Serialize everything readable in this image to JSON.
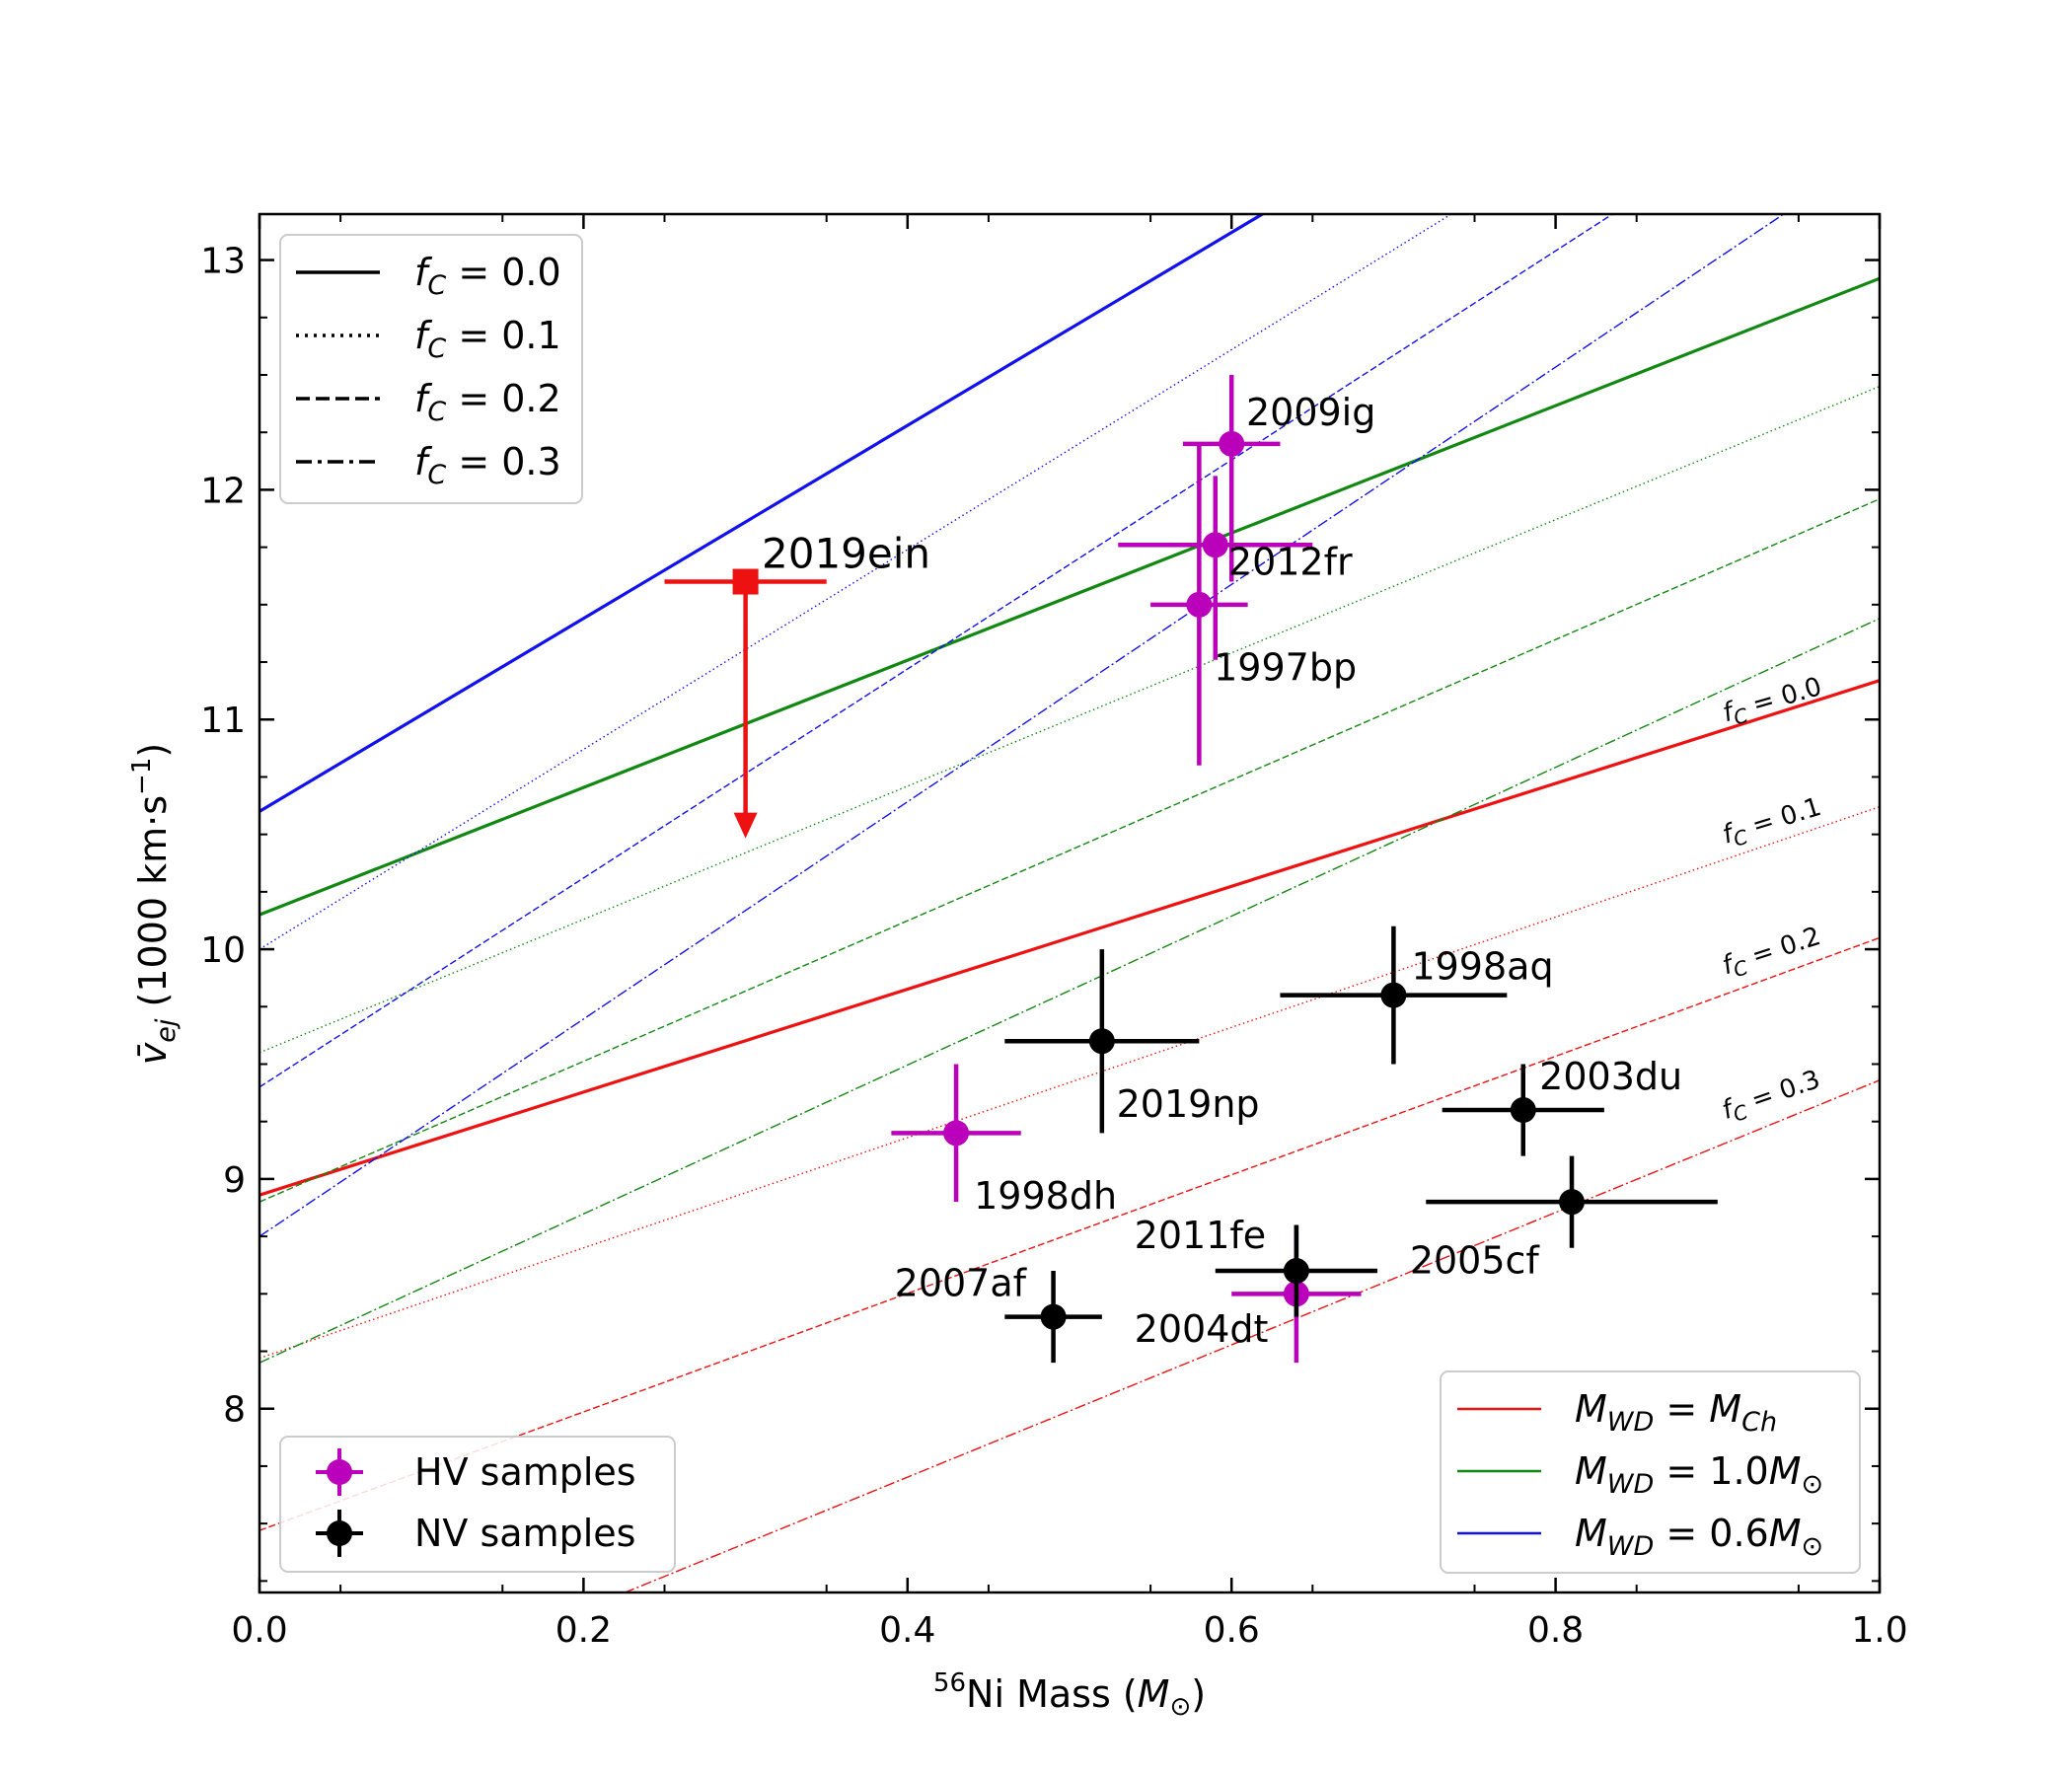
{
  "chart_data": {
    "type": "scatter",
    "xlabel": {
      "sup": "56",
      "main": "Ni Mass (",
      "sym": "M",
      "sub": "⊙",
      "end": ")"
    },
    "ylabel": {
      "v": "v̄",
      "sub": "ej",
      "main": " (1000 km·s",
      "sup": "−1",
      "end": ")"
    },
    "xlim": [
      0.0,
      1.0
    ],
    "ylim": [
      7.2,
      13.2
    ],
    "xticks": [
      {
        "v": 0.0,
        "label": "0.0"
      },
      {
        "v": 0.2,
        "label": "0.2"
      },
      {
        "v": 0.4,
        "label": "0.4"
      },
      {
        "v": 0.6,
        "label": "0.6"
      },
      {
        "v": 0.8,
        "label": "0.8"
      },
      {
        "v": 1.0,
        "label": "1.0"
      }
    ],
    "yticks": [
      {
        "v": 8,
        "label": "8"
      },
      {
        "v": 9,
        "label": "9"
      },
      {
        "v": 10,
        "label": "10"
      },
      {
        "v": 11,
        "label": "11"
      },
      {
        "v": 12,
        "label": "12"
      },
      {
        "v": 13,
        "label": "13"
      }
    ],
    "colors": {
      "Ch": "#ee1111",
      "1.0": "#118811",
      "0.6": "#1111ee",
      "hv": "#bb00bb",
      "nv": "#000000",
      "ein": "#ee1111"
    },
    "model_lines": [
      {
        "mass": "Ch",
        "fc": 0.0,
        "y0": 8.93,
        "y1": 11.17
      },
      {
        "mass": "Ch",
        "fc": 0.1,
        "y0": 8.22,
        "y1": 10.62
      },
      {
        "mass": "Ch",
        "fc": 0.2,
        "y0": 7.47,
        "y1": 10.05
      },
      {
        "mass": "Ch",
        "fc": 0.3,
        "y0": 6.55,
        "y1": 9.43
      },
      {
        "mass": "1.0",
        "fc": 0.0,
        "y0": 10.15,
        "y1": 12.92
      },
      {
        "mass": "1.0",
        "fc": 0.1,
        "y0": 9.55,
        "y1": 12.45
      },
      {
        "mass": "1.0",
        "fc": 0.2,
        "y0": 8.9,
        "y1": 11.96
      },
      {
        "mass": "1.0",
        "fc": 0.3,
        "y0": 8.2,
        "y1": 11.44
      },
      {
        "mass": "0.6",
        "fc": 0.0,
        "y0": 10.6,
        "y1": 14.8
      },
      {
        "mass": "0.6",
        "fc": 0.1,
        "y0": 10.0,
        "y1": 14.35
      },
      {
        "mass": "0.6",
        "fc": 0.2,
        "y0": 9.4,
        "y1": 13.95
      },
      {
        "mass": "0.6",
        "fc": 0.3,
        "y0": 8.75,
        "y1": 13.48
      }
    ],
    "line_labels": [
      {
        "text": "0.0",
        "x": 0.905,
        "y": 10.99,
        "angle": -16
      },
      {
        "text": "0.1",
        "x": 0.905,
        "y": 10.46,
        "angle": -17
      },
      {
        "text": "0.2",
        "x": 0.905,
        "y": 9.89,
        "angle": -18
      },
      {
        "text": "0.3",
        "x": 0.905,
        "y": 9.26,
        "angle": -19
      }
    ],
    "line_label_prefix": {
      "f": "f",
      "sub": "C",
      "eq": " = "
    },
    "points": [
      {
        "name": "2009ig",
        "group": "hv",
        "x": 0.6,
        "y": 12.2,
        "xerr": [
          0.03,
          0.03
        ],
        "yerr": [
          0.6,
          0.3
        ],
        "lx": 0.609,
        "ly": 12.28
      },
      {
        "name": "2012fr",
        "group": "hv",
        "x": 0.59,
        "y": 11.76,
        "xerr": [
          0.06,
          0.06
        ],
        "yerr": [
          0.5,
          0.3
        ],
        "lx": 0.598,
        "ly": 11.63
      },
      {
        "name": "1997bp",
        "group": "hv",
        "x": 0.58,
        "y": 11.5,
        "xerr": [
          0.03,
          0.03
        ],
        "yerr": [
          0.7,
          0.7
        ],
        "lx": 0.589,
        "ly": 11.17
      },
      {
        "name": "1998dh",
        "group": "hv",
        "x": 0.43,
        "y": 9.2,
        "xerr": [
          0.04,
          0.04
        ],
        "yerr": [
          0.3,
          0.3
        ],
        "lx": 0.441,
        "ly": 8.87
      },
      {
        "name": "2004dt",
        "group": "hv",
        "x": 0.64,
        "y": 8.5,
        "xerr": [
          0.04,
          0.04
        ],
        "yerr": [
          0.3,
          0.3
        ],
        "lx": 0.54,
        "ly": 8.29
      },
      {
        "name": "2019np",
        "group": "nv",
        "x": 0.52,
        "y": 9.6,
        "xerr": [
          0.06,
          0.06
        ],
        "yerr": [
          0.4,
          0.4
        ],
        "lx": 0.529,
        "ly": 9.27
      },
      {
        "name": "1998aq",
        "group": "nv",
        "x": 0.7,
        "y": 9.8,
        "xerr": [
          0.07,
          0.07
        ],
        "yerr": [
          0.3,
          0.3
        ],
        "lx": 0.711,
        "ly": 9.87
      },
      {
        "name": "2003du",
        "group": "nv",
        "x": 0.78,
        "y": 9.3,
        "xerr": [
          0.05,
          0.05
        ],
        "yerr": [
          0.2,
          0.2
        ],
        "lx": 0.79,
        "ly": 9.39
      },
      {
        "name": "2005cf",
        "group": "nv",
        "x": 0.81,
        "y": 8.9,
        "xerr": [
          0.09,
          0.09
        ],
        "yerr": [
          0.2,
          0.2
        ],
        "lx": 0.71,
        "ly": 8.59
      },
      {
        "name": "2011fe",
        "group": "nv",
        "x": 0.64,
        "y": 8.6,
        "xerr": [
          0.05,
          0.05
        ],
        "yerr": [
          0.2,
          0.2
        ],
        "lx": 0.54,
        "ly": 8.7
      },
      {
        "name": "2007af",
        "group": "nv",
        "x": 0.49,
        "y": 8.4,
        "xerr": [
          0.03,
          0.03
        ],
        "yerr": [
          0.2,
          0.2
        ],
        "lx": 0.392,
        "ly": 8.49
      }
    ],
    "upper_limit": {
      "name": "2019ein",
      "x": 0.3,
      "y": 11.6,
      "xerr": [
        0.05,
        0.05
      ],
      "arrow_to": 10.5,
      "lx": 0.31,
      "ly": 11.66
    },
    "legend_fc": {
      "position": "top-left",
      "entries": [
        {
          "style": "solid",
          "f": "f",
          "sub": "C",
          "eq": " = 0.0"
        },
        {
          "style": "dotted",
          "f": "f",
          "sub": "C",
          "eq": " = 0.1"
        },
        {
          "style": "dashed",
          "f": "f",
          "sub": "C",
          "eq": " = 0.2"
        },
        {
          "style": "dashdot",
          "f": "f",
          "sub": "C",
          "eq": " = 0.3"
        }
      ]
    },
    "legend_samples": {
      "position": "bottom-left",
      "entries": [
        {
          "group": "hv",
          "label": "HV samples"
        },
        {
          "group": "nv",
          "label": "NV samples"
        }
      ]
    },
    "legend_mass": {
      "position": "bottom-right",
      "entries": [
        {
          "color_key": "Ch",
          "m": "M",
          "sub": "WD",
          "eq": " = ",
          "rhs": "M",
          "rsub": "Ch",
          "tail": ""
        },
        {
          "color_key": "1.0",
          "m": "M",
          "sub": "WD",
          "eq": " = 1.0",
          "rhs": "M",
          "rsub": "⊙",
          "tail": ""
        },
        {
          "color_key": "0.6",
          "m": "M",
          "sub": "WD",
          "eq": " = 0.6",
          "rhs": "M",
          "rsub": "⊙",
          "tail": ""
        }
      ]
    }
  }
}
